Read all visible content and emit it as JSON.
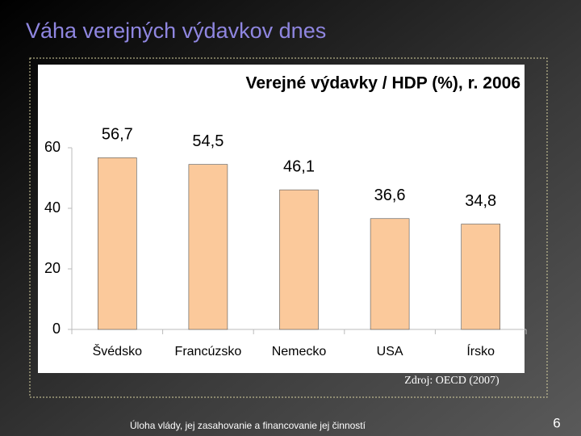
{
  "slide_title": "Váha verejných výdavkov dnes",
  "chart_data": {
    "type": "bar",
    "title": "Verejné výdavky / HDP (%), r. 2006",
    "categories": [
      "Švédsko",
      "Francúzsko",
      "Nemecko",
      "USA",
      "Írsko"
    ],
    "values": [
      56.7,
      54.5,
      46.1,
      36.6,
      34.8
    ],
    "value_labels": [
      "56,7",
      "54,5",
      "46,1",
      "36,6",
      "34,8"
    ],
    "color": "#fbc99b",
    "ylim": [
      0,
      60
    ],
    "yticks": [
      0,
      20,
      40,
      60
    ],
    "grid": false
  },
  "source": "Zdroj: OECD (2007)",
  "footer": "Úloha vlády, jej zasahovanie a financovanie jej činností",
  "page_number": 6
}
